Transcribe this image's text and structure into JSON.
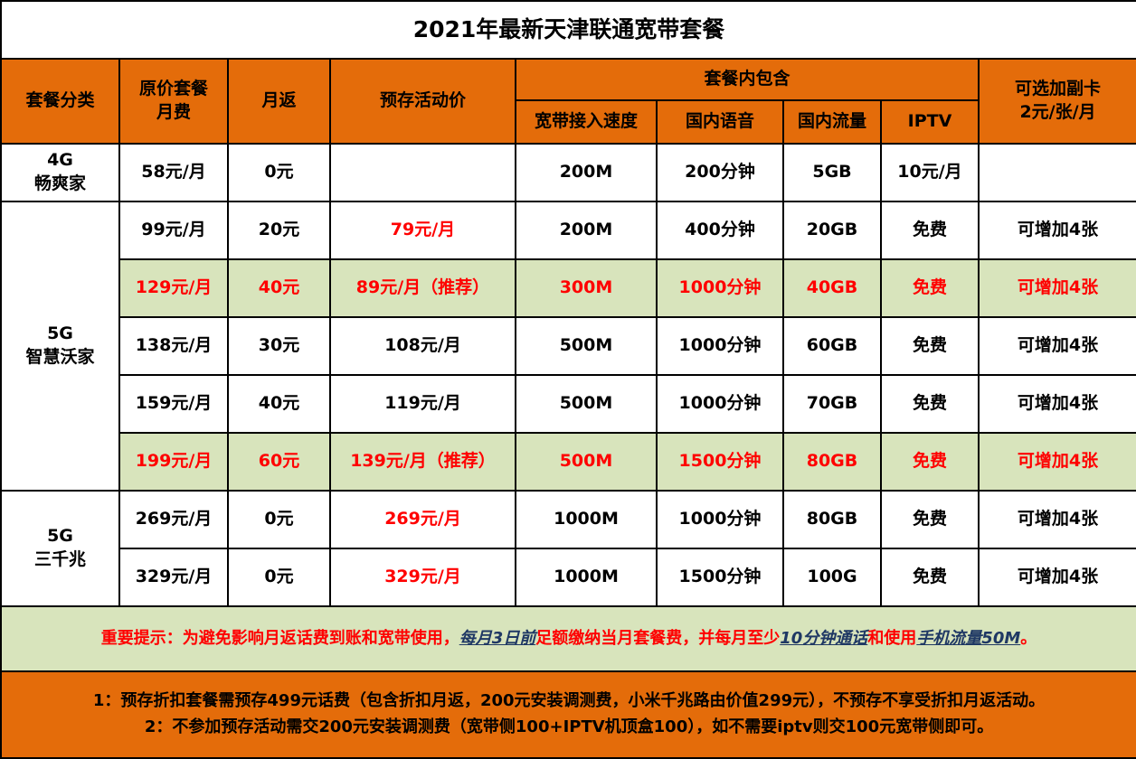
{
  "title": "2021年最新天津联通宽带套餐",
  "headers": {
    "category": "套餐分类",
    "orig_price_line1": "原价套餐",
    "orig_price_line2": "月费",
    "monthly_rebate": "月返",
    "prestore_price": "预存活动价",
    "included": "套餐内包含",
    "speed": "宽带接入速度",
    "voice": "国内语音",
    "data": "国内流量",
    "iptv": "IPTV",
    "extra_line1": "可选加副卡",
    "extra_line2": "2元/张/月"
  },
  "categories": {
    "g4": [
      "4G",
      "畅爽家"
    ],
    "g5": [
      "5G",
      "智慧沃家"
    ],
    "g5k": [
      "5G",
      "三千兆"
    ]
  },
  "rows": [
    {
      "price": "58元/月",
      "rebate": "0元",
      "promo": "",
      "speed": "200M",
      "voice": "200分钟",
      "data": "5GB",
      "iptv": "10元/月",
      "extra": ""
    },
    {
      "price": "99元/月",
      "rebate": "20元",
      "promo": "79元/月",
      "speed": "200M",
      "voice": "400分钟",
      "data": "20GB",
      "iptv": "免费",
      "extra": "可增加4张"
    },
    {
      "price": "129元/月",
      "rebate": "40元",
      "promo": "89元/月（推荐）",
      "speed": "300M",
      "voice": "1000分钟",
      "data": "40GB",
      "iptv": "免费",
      "extra": "可增加4张"
    },
    {
      "price": "138元/月",
      "rebate": "30元",
      "promo": "108元/月",
      "speed": "500M",
      "voice": "1000分钟",
      "data": "60GB",
      "iptv": "免费",
      "extra": "可增加4张"
    },
    {
      "price": "159元/月",
      "rebate": "40元",
      "promo": "119元/月",
      "speed": "500M",
      "voice": "1000分钟",
      "data": "70GB",
      "iptv": "免费",
      "extra": "可增加4张"
    },
    {
      "price": "199元/月",
      "rebate": "60元",
      "promo": "139元/月（推荐）",
      "speed": "500M",
      "voice": "1500分钟",
      "data": "80GB",
      "iptv": "免费",
      "extra": "可增加4张"
    },
    {
      "price": "269元/月",
      "rebate": "0元",
      "promo": "269元/月",
      "speed": "1000M",
      "voice": "1000分钟",
      "data": "80GB",
      "iptv": "免费",
      "extra": "可增加4张"
    },
    {
      "price": "329元/月",
      "rebate": "0元",
      "promo": "329元/月",
      "speed": "1000M",
      "voice": "1500分钟",
      "data": "100G",
      "iptv": "免费",
      "extra": "可增加4张"
    }
  ],
  "notice": {
    "part1": "重要提示：为避免影响月返话费到账和宽带使用，",
    "part2": "每月3日前",
    "part3": "足额缴纳当月套餐费，并每月至少",
    "part4": "10分钟通话",
    "part5": "和使用",
    "part6": "手机流量50M",
    "part7": "。"
  },
  "footer": {
    "line1": "1：预存折扣套餐需预存499元话费（包含折扣月返，200元安装调测费，小米千兆路由价值299元），不预存不享受折扣月返活动。",
    "line2": "2：不参加预存活动需交200元安装调测费（宽带侧100+IPTV机顶盒100），如不需要iptv则交100元宽带侧即可。"
  }
}
